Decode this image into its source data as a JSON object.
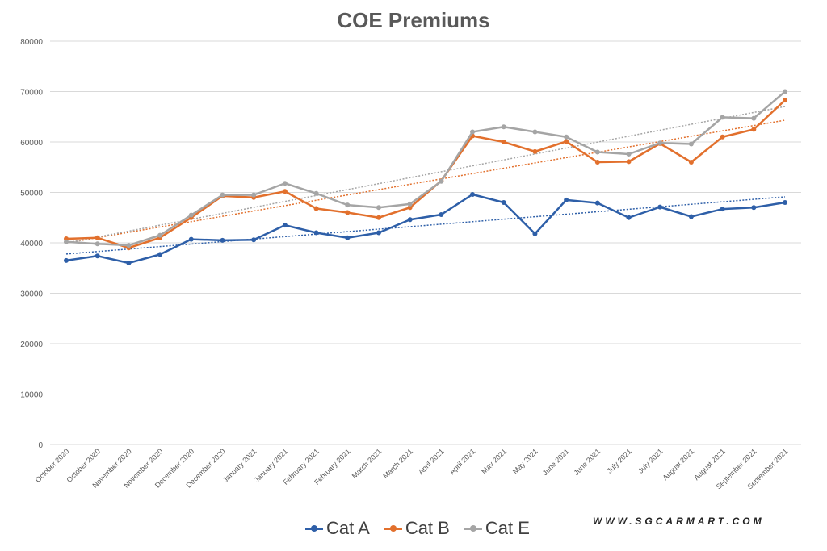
{
  "colors": {
    "cat_a": "#2e5fa8",
    "cat_b": "#e2702d",
    "cat_e": "#a5a5a5",
    "grid": "#d9d9d9",
    "tick_text": "#595959"
  },
  "watermark": "WWW.SGCARMART.COM",
  "chart_data": {
    "type": "line",
    "title": "COE Premiums",
    "xlabel": "",
    "ylabel": "",
    "ylim": [
      0,
      80000
    ],
    "yticks": [
      "0",
      "10000",
      "20000",
      "30000",
      "40000",
      "50000",
      "60000",
      "70000",
      "80000"
    ],
    "grid": true,
    "legend_position": "bottom",
    "trendlines": "linear, dotted, one per series",
    "categories": [
      "October 2020",
      "October 2020",
      "November 2020",
      "November 2020",
      "December 2020",
      "December 2020",
      "January 2021",
      "January 2021",
      "February 2021",
      "February 2021",
      "March 2021",
      "March 2021",
      "April 2021",
      "April 2021",
      "May 2021",
      "May 2021",
      "June 2021",
      "June 2021",
      "July 2021",
      "July 2021",
      "August 2021",
      "August 2021",
      "September 2021",
      "September 2021"
    ],
    "series": [
      {
        "name": "Cat A",
        "color_key": "cat_a",
        "values": [
          36500,
          37400,
          36000,
          37700,
          40700,
          40500,
          40600,
          43500,
          42000,
          41000,
          42000,
          44600,
          45600,
          49600,
          48000,
          41800,
          48500,
          47900,
          45000,
          47100,
          45200,
          46700,
          47000,
          48000
        ]
      },
      {
        "name": "Cat B",
        "color_key": "cat_b",
        "values": [
          40800,
          41000,
          39000,
          41000,
          45000,
          49300,
          49000,
          50200,
          46800,
          46000,
          45000,
          47000,
          52300,
          61200,
          60000,
          58100,
          60100,
          56000,
          56100,
          59700,
          56000,
          61000,
          62500,
          68300
        ]
      },
      {
        "name": "Cat E",
        "color_key": "cat_e",
        "values": [
          40200,
          39800,
          39500,
          41500,
          45500,
          49500,
          49500,
          51800,
          49800,
          47500,
          47000,
          47700,
          52200,
          62000,
          63000,
          62000,
          61000,
          58000,
          57600,
          59800,
          59600,
          64900,
          64700,
          70000
        ]
      }
    ]
  }
}
